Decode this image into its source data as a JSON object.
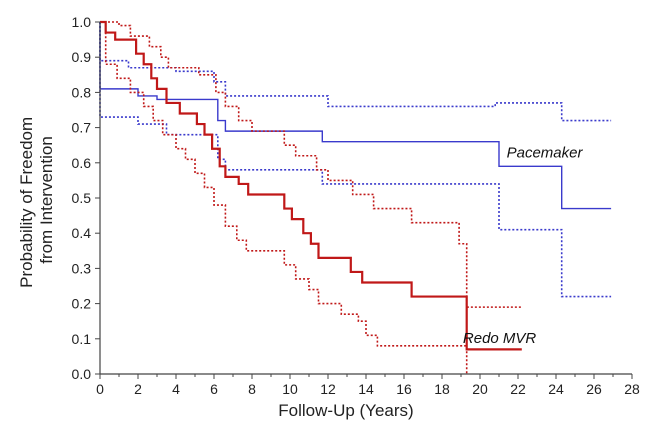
{
  "chart_data": {
    "type": "line",
    "step": true,
    "title": "",
    "xlabel": "Follow-Up (Years)",
    "ylabel_lines": [
      "Probability of Freedom",
      "from Intervention"
    ],
    "xlim": [
      0,
      28
    ],
    "ylim": [
      0,
      1.0
    ],
    "xticks": [
      0,
      2,
      4,
      6,
      8,
      10,
      12,
      14,
      16,
      18,
      20,
      22,
      24,
      26,
      28
    ],
    "yticks": [
      0.0,
      0.1,
      0.2,
      0.3,
      0.4,
      0.5,
      0.6,
      0.7,
      0.8,
      0.9,
      1.0
    ],
    "ytick_labels": [
      "0.0",
      "0.1",
      "0.2",
      "0.3",
      "0.4",
      "0.5",
      "0.6",
      "0.7",
      "0.8",
      "0.9",
      "1.0"
    ],
    "grid": false,
    "colors": {
      "pacemaker": "#3a3acc",
      "redo": "#c01818",
      "axis": "#444444"
    },
    "series": [
      {
        "name": "Pacemaker",
        "style": "solid",
        "color": "#3a3acc",
        "points": [
          [
            0,
            1.0
          ],
          [
            0,
            0.81
          ],
          [
            2,
            0.81
          ],
          [
            2,
            0.79
          ],
          [
            3,
            0.79
          ],
          [
            3,
            0.78
          ],
          [
            6.2,
            0.78
          ],
          [
            6.2,
            0.72
          ],
          [
            6.6,
            0.72
          ],
          [
            6.6,
            0.69
          ],
          [
            11.7,
            0.69
          ],
          [
            11.7,
            0.66
          ],
          [
            21,
            0.66
          ],
          [
            21,
            0.59
          ],
          [
            24.3,
            0.59
          ],
          [
            24.3,
            0.47
          ],
          [
            26.9,
            0.47
          ]
        ]
      },
      {
        "name": "Pacemaker upper CI",
        "style": "dotted",
        "color": "#3a3acc",
        "points": [
          [
            0,
            1.0
          ],
          [
            0,
            0.89
          ],
          [
            1.5,
            0.89
          ],
          [
            1.5,
            0.87
          ],
          [
            4,
            0.87
          ],
          [
            4,
            0.86
          ],
          [
            6,
            0.86
          ],
          [
            6,
            0.83
          ],
          [
            6.6,
            0.83
          ],
          [
            6.6,
            0.79
          ],
          [
            12,
            0.79
          ],
          [
            12,
            0.76
          ],
          [
            20.8,
            0.76
          ],
          [
            20.8,
            0.77
          ],
          [
            24.3,
            0.77
          ],
          [
            24.3,
            0.72
          ],
          [
            26.9,
            0.72
          ]
        ]
      },
      {
        "name": "Pacemaker lower CI",
        "style": "dotted",
        "color": "#3a3acc",
        "points": [
          [
            0,
            1.0
          ],
          [
            0,
            0.73
          ],
          [
            2,
            0.73
          ],
          [
            2,
            0.71
          ],
          [
            3.5,
            0.71
          ],
          [
            3.5,
            0.68
          ],
          [
            6.2,
            0.68
          ],
          [
            6.2,
            0.61
          ],
          [
            6.6,
            0.61
          ],
          [
            6.6,
            0.58
          ],
          [
            11.7,
            0.58
          ],
          [
            11.7,
            0.54
          ],
          [
            21,
            0.54
          ],
          [
            21,
            0.41
          ],
          [
            24.3,
            0.41
          ],
          [
            24.3,
            0.22
          ],
          [
            26.9,
            0.22
          ]
        ]
      },
      {
        "name": "Redo MVR",
        "style": "solid",
        "color": "#c01818",
        "points": [
          [
            0,
            1.0
          ],
          [
            0.3,
            1.0
          ],
          [
            0.3,
            0.97
          ],
          [
            0.8,
            0.97
          ],
          [
            0.8,
            0.95
          ],
          [
            1.9,
            0.95
          ],
          [
            1.9,
            0.91
          ],
          [
            2.3,
            0.91
          ],
          [
            2.3,
            0.88
          ],
          [
            2.7,
            0.88
          ],
          [
            2.7,
            0.84
          ],
          [
            3,
            0.84
          ],
          [
            3,
            0.81
          ],
          [
            3.5,
            0.81
          ],
          [
            3.5,
            0.77
          ],
          [
            4.2,
            0.77
          ],
          [
            4.2,
            0.74
          ],
          [
            5.1,
            0.74
          ],
          [
            5.1,
            0.71
          ],
          [
            5.5,
            0.71
          ],
          [
            5.5,
            0.68
          ],
          [
            5.9,
            0.68
          ],
          [
            5.9,
            0.64
          ],
          [
            6.3,
            0.64
          ],
          [
            6.3,
            0.59
          ],
          [
            6.6,
            0.59
          ],
          [
            6.6,
            0.56
          ],
          [
            7.3,
            0.56
          ],
          [
            7.3,
            0.54
          ],
          [
            7.8,
            0.54
          ],
          [
            7.8,
            0.51
          ],
          [
            9.7,
            0.51
          ],
          [
            9.7,
            0.47
          ],
          [
            10.1,
            0.47
          ],
          [
            10.1,
            0.44
          ],
          [
            10.7,
            0.44
          ],
          [
            10.7,
            0.4
          ],
          [
            11.1,
            0.4
          ],
          [
            11.1,
            0.37
          ],
          [
            11.5,
            0.37
          ],
          [
            11.5,
            0.33
          ],
          [
            13.2,
            0.33
          ],
          [
            13.2,
            0.29
          ],
          [
            13.8,
            0.29
          ],
          [
            13.8,
            0.26
          ],
          [
            16.4,
            0.26
          ],
          [
            16.4,
            0.22
          ],
          [
            19.3,
            0.22
          ],
          [
            19.3,
            0.07
          ],
          [
            22.2,
            0.07
          ]
        ]
      },
      {
        "name": "Redo MVR upper CI",
        "style": "dotted",
        "color": "#c01818",
        "points": [
          [
            0,
            1.0
          ],
          [
            1,
            1.0
          ],
          [
            1,
            0.99
          ],
          [
            1.6,
            0.99
          ],
          [
            1.6,
            0.96
          ],
          [
            2.6,
            0.96
          ],
          [
            2.6,
            0.93
          ],
          [
            3.2,
            0.93
          ],
          [
            3.2,
            0.9
          ],
          [
            3.6,
            0.9
          ],
          [
            3.6,
            0.87
          ],
          [
            5.2,
            0.87
          ],
          [
            5.2,
            0.85
          ],
          [
            6.1,
            0.85
          ],
          [
            6.1,
            0.8
          ],
          [
            6.6,
            0.8
          ],
          [
            6.6,
            0.76
          ],
          [
            7.3,
            0.76
          ],
          [
            7.3,
            0.72
          ],
          [
            8,
            0.72
          ],
          [
            8,
            0.69
          ],
          [
            9.7,
            0.69
          ],
          [
            9.7,
            0.65
          ],
          [
            10.3,
            0.65
          ],
          [
            10.3,
            0.62
          ],
          [
            11.4,
            0.62
          ],
          [
            11.4,
            0.58
          ],
          [
            12,
            0.58
          ],
          [
            12,
            0.55
          ],
          [
            13.3,
            0.55
          ],
          [
            13.3,
            0.51
          ],
          [
            14.4,
            0.51
          ],
          [
            14.4,
            0.47
          ],
          [
            16.4,
            0.47
          ],
          [
            16.4,
            0.43
          ],
          [
            18.9,
            0.43
          ],
          [
            18.9,
            0.37
          ],
          [
            19.3,
            0.37
          ],
          [
            19.3,
            0.19
          ],
          [
            22.2,
            0.19
          ]
        ]
      },
      {
        "name": "Redo MVR lower CI",
        "style": "dotted",
        "color": "#c01818",
        "points": [
          [
            0,
            1.0
          ],
          [
            0.3,
            1.0
          ],
          [
            0.3,
            0.88
          ],
          [
            0.9,
            0.88
          ],
          [
            0.9,
            0.84
          ],
          [
            1.6,
            0.84
          ],
          [
            1.6,
            0.8
          ],
          [
            2.3,
            0.8
          ],
          [
            2.3,
            0.76
          ],
          [
            2.8,
            0.76
          ],
          [
            2.8,
            0.72
          ],
          [
            3.3,
            0.72
          ],
          [
            3.3,
            0.68
          ],
          [
            4,
            0.68
          ],
          [
            4,
            0.64
          ],
          [
            4.5,
            0.64
          ],
          [
            4.5,
            0.61
          ],
          [
            5,
            0.61
          ],
          [
            5,
            0.57
          ],
          [
            5.5,
            0.57
          ],
          [
            5.5,
            0.53
          ],
          [
            6,
            0.53
          ],
          [
            6,
            0.48
          ],
          [
            6.6,
            0.48
          ],
          [
            6.6,
            0.42
          ],
          [
            7.2,
            0.42
          ],
          [
            7.2,
            0.38
          ],
          [
            7.7,
            0.38
          ],
          [
            7.7,
            0.35
          ],
          [
            9.7,
            0.35
          ],
          [
            9.7,
            0.31
          ],
          [
            10.3,
            0.31
          ],
          [
            10.3,
            0.27
          ],
          [
            11,
            0.27
          ],
          [
            11,
            0.24
          ],
          [
            11.5,
            0.24
          ],
          [
            11.5,
            0.2
          ],
          [
            12.7,
            0.2
          ],
          [
            12.7,
            0.17
          ],
          [
            13.6,
            0.17
          ],
          [
            13.6,
            0.15
          ],
          [
            14,
            0.15
          ],
          [
            14,
            0.11
          ],
          [
            14.6,
            0.11
          ],
          [
            14.6,
            0.08
          ],
          [
            19.3,
            0.08
          ],
          [
            19.3,
            0.0
          ]
        ]
      }
    ],
    "annotations": [
      {
        "text": "Pacemaker",
        "x": 21.4,
        "y": 0.615,
        "color": "#111111"
      },
      {
        "text": "Redo MVR",
        "x": 19.1,
        "y": 0.088,
        "color": "#111111"
      }
    ]
  }
}
